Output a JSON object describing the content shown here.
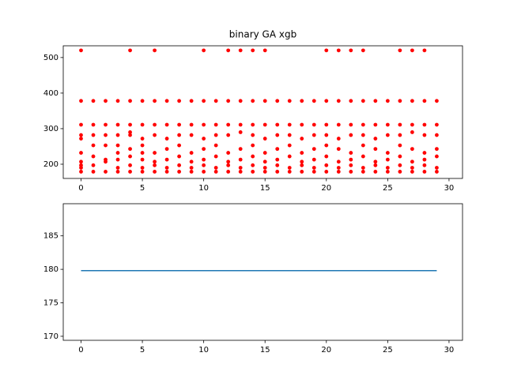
{
  "chart_data": [
    {
      "type": "scatter",
      "title": "binary GA xgb",
      "color": "#ff0000",
      "x": [
        0,
        0,
        0,
        0,
        0,
        0,
        0,
        0,
        0,
        0,
        1,
        1,
        1,
        1,
        1,
        1,
        1,
        2,
        2,
        2,
        2,
        2,
        2,
        2,
        3,
        3,
        3,
        3,
        3,
        3,
        3,
        3,
        4,
        4,
        4,
        4,
        4,
        4,
        4,
        4,
        4,
        5,
        5,
        5,
        5,
        5,
        5,
        5,
        5,
        6,
        6,
        6,
        6,
        6,
        6,
        6,
        6,
        7,
        7,
        7,
        7,
        7,
        7,
        7,
        8,
        8,
        8,
        8,
        8,
        8,
        8,
        9,
        9,
        9,
        9,
        9,
        9,
        9,
        10,
        10,
        10,
        10,
        10,
        10,
        10,
        10,
        11,
        11,
        11,
        11,
        11,
        11,
        11,
        12,
        12,
        12,
        12,
        12,
        12,
        12,
        12,
        13,
        13,
        13,
        13,
        13,
        13,
        13,
        13,
        14,
        14,
        14,
        14,
        14,
        14,
        14,
        14,
        15,
        15,
        15,
        15,
        15,
        15,
        15,
        15,
        16,
        16,
        16,
        16,
        16,
        16,
        16,
        17,
        17,
        17,
        17,
        17,
        17,
        17,
        18,
        18,
        18,
        18,
        18,
        18,
        18,
        19,
        19,
        19,
        19,
        19,
        19,
        19,
        20,
        20,
        20,
        20,
        20,
        20,
        20,
        20,
        21,
        21,
        21,
        21,
        21,
        21,
        21,
        21,
        22,
        22,
        22,
        22,
        22,
        22,
        22,
        22,
        23,
        23,
        23,
        23,
        23,
        23,
        23,
        23,
        24,
        24,
        24,
        24,
        24,
        24,
        24,
        25,
        25,
        25,
        25,
        25,
        25,
        25,
        26,
        26,
        26,
        26,
        26,
        26,
        26,
        26,
        27,
        27,
        27,
        27,
        27,
        27,
        27,
        27,
        28,
        28,
        28,
        28,
        28,
        28,
        28,
        28,
        29,
        29,
        29,
        29,
        29,
        29,
        29
      ],
      "values": [
        179,
        190,
        197,
        207,
        232,
        272,
        282,
        311,
        378,
        520,
        179,
        197,
        222,
        253,
        282,
        311,
        378,
        179,
        207,
        213,
        253,
        282,
        311,
        378,
        179,
        190,
        213,
        232,
        253,
        282,
        311,
        378,
        179,
        197,
        222,
        243,
        282,
        290,
        311,
        378,
        520,
        179,
        190,
        213,
        232,
        253,
        272,
        311,
        378,
        179,
        197,
        207,
        232,
        282,
        311,
        378,
        520,
        179,
        190,
        213,
        243,
        272,
        311,
        378,
        179,
        197,
        222,
        253,
        282,
        311,
        378,
        179,
        190,
        207,
        232,
        282,
        311,
        378,
        179,
        197,
        213,
        243,
        272,
        311,
        378,
        520,
        179,
        190,
        222,
        253,
        282,
        311,
        378,
        179,
        197,
        207,
        232,
        282,
        311,
        378,
        520,
        179,
        190,
        213,
        243,
        290,
        311,
        378,
        520,
        179,
        197,
        222,
        253,
        282,
        311,
        378,
        520,
        179,
        190,
        207,
        232,
        272,
        311,
        378,
        520,
        179,
        197,
        213,
        243,
        282,
        311,
        378,
        179,
        190,
        222,
        253,
        282,
        311,
        378,
        179,
        197,
        207,
        232,
        272,
        311,
        378,
        179,
        190,
        213,
        243,
        282,
        311,
        378,
        179,
        197,
        222,
        253,
        282,
        311,
        378,
        520,
        179,
        190,
        207,
        243,
        272,
        311,
        378,
        520,
        179,
        197,
        213,
        232,
        282,
        311,
        378,
        520,
        179,
        190,
        222,
        253,
        282,
        311,
        378,
        520,
        179,
        197,
        207,
        243,
        272,
        311,
        378,
        179,
        190,
        213,
        232,
        282,
        311,
        378,
        179,
        197,
        222,
        253,
        282,
        311,
        378,
        520,
        179,
        190,
        207,
        243,
        290,
        311,
        378,
        520,
        179,
        197,
        213,
        232,
        282,
        311,
        378,
        520,
        179,
        190,
        222,
        243,
        282,
        311,
        378
      ],
      "xlim": [
        -1.45,
        31.1
      ],
      "ylim": [
        160,
        533
      ],
      "xticks": [
        0,
        5,
        10,
        15,
        20,
        25,
        30
      ],
      "yticks": [
        200,
        300,
        400,
        500
      ]
    },
    {
      "type": "line",
      "color": "#1f77b4",
      "x": [
        0,
        1,
        2,
        3,
        4,
        5,
        6,
        7,
        8,
        9,
        10,
        11,
        12,
        13,
        14,
        15,
        16,
        17,
        18,
        19,
        20,
        21,
        22,
        23,
        24,
        25,
        26,
        27,
        28,
        29
      ],
      "values": [
        179.8,
        179.8,
        179.8,
        179.8,
        179.8,
        179.8,
        179.8,
        179.8,
        179.8,
        179.8,
        179.8,
        179.8,
        179.8,
        179.8,
        179.8,
        179.8,
        179.8,
        179.8,
        179.8,
        179.8,
        179.8,
        179.8,
        179.8,
        179.8,
        179.8,
        179.8,
        179.8,
        179.8,
        179.8,
        179.8
      ],
      "xlim": [
        -1.45,
        31.1
      ],
      "ylim": [
        169.4,
        189.8
      ],
      "xticks": [
        0,
        5,
        10,
        15,
        20,
        25,
        30
      ],
      "yticks": [
        170,
        175,
        180,
        185
      ]
    }
  ]
}
